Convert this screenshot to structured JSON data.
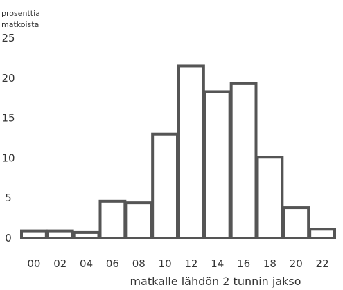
{
  "chart_data": {
    "type": "bar",
    "title": "",
    "ylabel_lines": [
      "prosenttia",
      "matkoista"
    ],
    "xlabel": "matkalle lähdön 2 tunnin jakso",
    "ylim": [
      0,
      25
    ],
    "yticks": [
      "0",
      "5",
      "10",
      "15",
      "20",
      "25"
    ],
    "categories": [
      "00",
      "02",
      "04",
      "06",
      "08",
      "10",
      "12",
      "14",
      "16",
      "18",
      "20",
      "22"
    ],
    "values": [
      0.9,
      0.9,
      0.7,
      4.6,
      4.4,
      13.0,
      21.5,
      18.3,
      19.3,
      10.1,
      3.8,
      1.1
    ],
    "grid": false,
    "bar_fill": "#ffffff",
    "bar_stroke": "#555555"
  }
}
